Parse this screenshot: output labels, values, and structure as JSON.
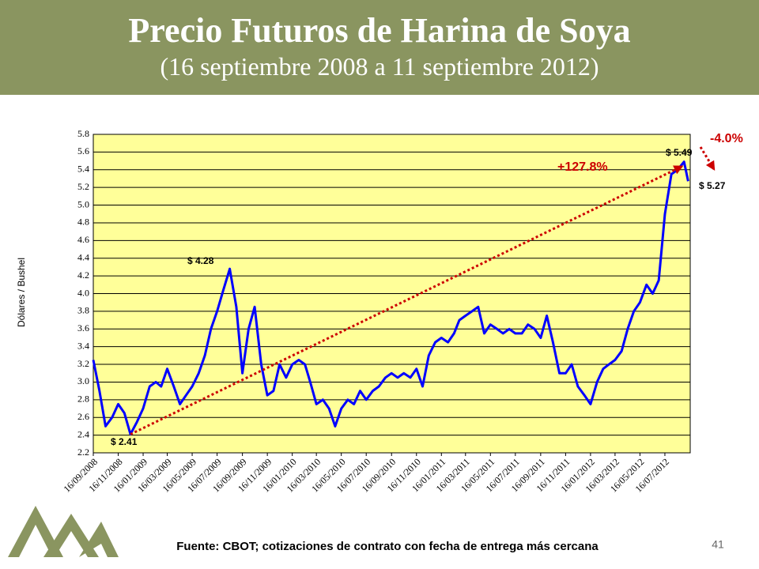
{
  "chart_data": {
    "type": "line",
    "title": "Precio Futuros de Harina de Soya",
    "subtitle": "(16 septiembre 2008 a 11 septiembre 2012)",
    "y_label": "Dólares / Bushel",
    "source": "Fuente: CBOT; cotizaciones de contrato con fecha de entrega más cercana",
    "page_number": "41",
    "annotations": [
      "$ 2.41",
      "$ 4.28",
      "$ 5.49",
      "$ 5.27",
      "+127.8%",
      "-4.0%"
    ],
    "x": [
      "16/09/2008",
      "01/10/2008",
      "16/10/2008",
      "01/11/2008",
      "16/11/2008",
      "01/12/2008",
      "16/12/2008",
      "01/01/2009",
      "16/01/2009",
      "01/02/2009",
      "16/02/2009",
      "01/03/2009",
      "16/03/2009",
      "01/04/2009",
      "16/04/2009",
      "01/05/2009",
      "16/05/2009",
      "01/06/2009",
      "16/06/2009",
      "01/07/2009",
      "16/07/2009",
      "01/08/2009",
      "16/08/2009",
      "01/09/2009",
      "16/09/2009",
      "01/10/2009",
      "16/10/2009",
      "01/11/2009",
      "16/11/2009",
      "01/12/2009",
      "16/12/2009",
      "01/01/2010",
      "16/01/2010",
      "01/02/2010",
      "16/02/2010",
      "01/03/2010",
      "16/03/2010",
      "01/04/2010",
      "16/04/2010",
      "01/05/2010",
      "16/05/2010",
      "01/06/2010",
      "16/06/2010",
      "01/07/2010",
      "16/07/2010",
      "01/08/2010",
      "16/08/2010",
      "01/09/2010",
      "16/09/2010",
      "01/10/2010",
      "16/10/2010",
      "01/11/2010",
      "16/11/2010",
      "01/12/2010",
      "16/12/2010",
      "01/01/2011",
      "16/01/2011",
      "01/02/2011",
      "16/02/2011",
      "01/03/2011",
      "16/03/2011",
      "01/04/2011",
      "16/04/2011",
      "01/05/2011",
      "16/05/2011",
      "01/06/2011",
      "16/06/2011",
      "01/07/2011",
      "16/07/2011",
      "01/08/2011",
      "16/08/2011",
      "01/09/2011",
      "16/09/2011",
      "01/10/2011",
      "16/10/2011",
      "01/11/2011",
      "16/11/2011",
      "01/12/2011",
      "16/12/2011",
      "01/01/2012",
      "16/01/2012",
      "01/02/2012",
      "16/02/2012",
      "01/03/2012",
      "16/03/2012",
      "01/04/2012",
      "16/04/2012",
      "01/05/2012",
      "16/05/2012",
      "01/06/2012",
      "16/06/2012",
      "01/07/2012",
      "16/07/2012",
      "01/08/2012",
      "16/08/2012",
      "01/09/2012",
      "11/09/2012"
    ],
    "series": [
      {
        "color": "#0000ff",
        "values": [
          3.25,
          2.9,
          2.5,
          2.6,
          2.75,
          2.65,
          2.41,
          2.55,
          2.7,
          2.95,
          3.0,
          2.95,
          3.15,
          2.95,
          2.75,
          2.85,
          2.95,
          3.1,
          3.3,
          3.6,
          3.8,
          4.05,
          4.28,
          3.85,
          3.1,
          3.6,
          3.85,
          3.2,
          2.85,
          2.9,
          3.2,
          3.05,
          3.2,
          3.25,
          3.2,
          3.0,
          2.75,
          2.8,
          2.7,
          2.5,
          2.7,
          2.8,
          2.75,
          2.9,
          2.8,
          2.9,
          2.95,
          3.05,
          3.1,
          3.05,
          3.1,
          3.05,
          3.15,
          2.95,
          3.3,
          3.45,
          3.5,
          3.45,
          3.55,
          3.7,
          3.75,
          3.8,
          3.85,
          3.55,
          3.65,
          3.6,
          3.55,
          3.6,
          3.55,
          3.55,
          3.65,
          3.6,
          3.5,
          3.75,
          3.45,
          3.1,
          3.1,
          3.2,
          2.95,
          2.85,
          2.75,
          3.0,
          3.15,
          3.2,
          3.25,
          3.35,
          3.6,
          3.8,
          3.9,
          4.1,
          4.0,
          4.15,
          4.9,
          5.35,
          5.4,
          5.49,
          5.27
        ]
      }
    ],
    "xlim": [
      "16/09/2008",
      "16/09/2012"
    ],
    "xticks": [
      "16/09/2008",
      "16/11/2008",
      "16/01/2009",
      "16/03/2009",
      "16/05/2009",
      "16/07/2009",
      "16/09/2009",
      "16/11/2009",
      "16/01/2010",
      "16/03/2010",
      "16/05/2010",
      "16/07/2010",
      "16/09/2010",
      "16/11/2010",
      "16/01/2011",
      "16/03/2011",
      "16/05/2011",
      "16/07/2011",
      "16/09/2011",
      "16/11/2011",
      "16/01/2012",
      "16/03/2012",
      "16/05/2012",
      "16/07/2012"
    ],
    "ylim": [
      2.2,
      5.8
    ],
    "yticks": [
      2.2,
      2.4,
      2.6,
      2.8,
      {
        "value": 3,
        "label": "3.0"
      },
      3.2,
      3.4,
      3.6,
      3.8,
      {
        "value": 4,
        "label": "4.0"
      },
      4.2,
      4.4,
      4.6,
      4.8,
      {
        "value": 5,
        "label": "5.0"
      },
      5.2,
      5.4,
      5.6,
      5.8
    ],
    "grid": true
  }
}
